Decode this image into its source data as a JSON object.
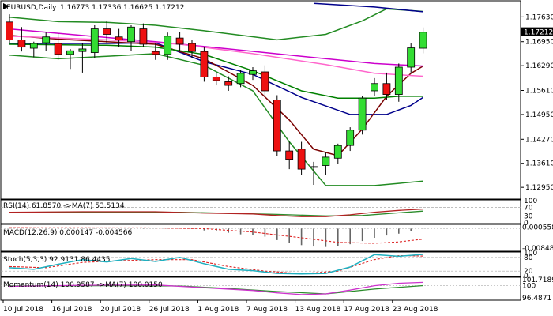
{
  "chart_data": {
    "type": "candlestick",
    "header": {
      "symbol": "EURUSD,Daily",
      "ohlc": "1.16773 1.17336 1.16625 1.17212"
    },
    "price_axis": {
      "ticks": [
        "1.17630",
        "1.16950",
        "1.16290",
        "1.15610",
        "1.14950",
        "1.14270",
        "1.13610",
        "1.12950"
      ],
      "tick_values": [
        1.1763,
        1.1695,
        1.1629,
        1.1561,
        1.1495,
        1.1427,
        1.1361,
        1.1295
      ],
      "current_price": "1.17212",
      "current_value": 1.17212,
      "range": [
        1.1265,
        1.1805
      ]
    },
    "date_axis": {
      "labels": [
        "10 Jul 2018",
        "16 Jul 2018",
        "20 Jul 2018",
        "26 Jul 2018",
        "1 Aug 2018",
        "7 Aug 2018",
        "13 Aug 2018",
        "17 Aug 2018",
        "23 Aug 2018"
      ],
      "label_candle_index": [
        0,
        4,
        8,
        12,
        16,
        20,
        24,
        28,
        32
      ]
    },
    "candles": [
      {
        "o": 1.1749,
        "h": 1.177,
        "l": 1.169,
        "c": 1.17
      },
      {
        "o": 1.17,
        "h": 1.1735,
        "l": 1.1668,
        "c": 1.168
      },
      {
        "o": 1.1677,
        "h": 1.1695,
        "l": 1.1652,
        "c": 1.169
      },
      {
        "o": 1.1692,
        "h": 1.172,
        "l": 1.167,
        "c": 1.1708
      },
      {
        "o": 1.169,
        "h": 1.1718,
        "l": 1.1645,
        "c": 1.166
      },
      {
        "o": 1.166,
        "h": 1.1675,
        "l": 1.162,
        "c": 1.167
      },
      {
        "o": 1.1668,
        "h": 1.169,
        "l": 1.161,
        "c": 1.1675
      },
      {
        "o": 1.1665,
        "h": 1.174,
        "l": 1.165,
        "c": 1.173
      },
      {
        "o": 1.173,
        "h": 1.1752,
        "l": 1.169,
        "c": 1.1715
      },
      {
        "o": 1.1708,
        "h": 1.173,
        "l": 1.168,
        "c": 1.17
      },
      {
        "o": 1.1695,
        "h": 1.174,
        "l": 1.167,
        "c": 1.1735
      },
      {
        "o": 1.173,
        "h": 1.1745,
        "l": 1.168,
        "c": 1.1688
      },
      {
        "o": 1.1668,
        "h": 1.169,
        "l": 1.1645,
        "c": 1.166
      },
      {
        "o": 1.166,
        "h": 1.172,
        "l": 1.1645,
        "c": 1.171
      },
      {
        "o": 1.1705,
        "h": 1.1722,
        "l": 1.167,
        "c": 1.1688
      },
      {
        "o": 1.169,
        "h": 1.17,
        "l": 1.165,
        "c": 1.1668
      },
      {
        "o": 1.1668,
        "h": 1.168,
        "l": 1.1585,
        "c": 1.1598
      },
      {
        "o": 1.1598,
        "h": 1.161,
        "l": 1.1575,
        "c": 1.1588
      },
      {
        "o": 1.1585,
        "h": 1.16,
        "l": 1.156,
        "c": 1.1575
      },
      {
        "o": 1.158,
        "h": 1.1618,
        "l": 1.157,
        "c": 1.1608
      },
      {
        "o": 1.1605,
        "h": 1.1625,
        "l": 1.159,
        "c": 1.1615
      },
      {
        "o": 1.1612,
        "h": 1.163,
        "l": 1.1545,
        "c": 1.156
      },
      {
        "o": 1.1535,
        "h": 1.1548,
        "l": 1.138,
        "c": 1.1395
      },
      {
        "o": 1.1395,
        "h": 1.142,
        "l": 1.1345,
        "c": 1.1372
      },
      {
        "o": 1.14,
        "h": 1.142,
        "l": 1.133,
        "c": 1.1345
      },
      {
        "o": 1.135,
        "h": 1.1365,
        "l": 1.1302,
        "c": 1.1352
      },
      {
        "o": 1.1355,
        "h": 1.139,
        "l": 1.133,
        "c": 1.1378
      },
      {
        "o": 1.1375,
        "h": 1.1415,
        "l": 1.136,
        "c": 1.141
      },
      {
        "o": 1.141,
        "h": 1.146,
        "l": 1.1395,
        "c": 1.1452
      },
      {
        "o": 1.1452,
        "h": 1.1545,
        "l": 1.144,
        "c": 1.154
      },
      {
        "o": 1.156,
        "h": 1.1595,
        "l": 1.1545,
        "c": 1.158
      },
      {
        "o": 1.158,
        "h": 1.161,
        "l": 1.1535,
        "c": 1.155
      },
      {
        "o": 1.155,
        "h": 1.1635,
        "l": 1.153,
        "c": 1.1625
      },
      {
        "o": 1.1625,
        "h": 1.169,
        "l": 1.161,
        "c": 1.1678
      },
      {
        "o": 1.1677,
        "h": 1.1734,
        "l": 1.1663,
        "c": 1.1721
      }
    ],
    "overlays": [
      {
        "color": "#00008b",
        "points": [
          [
            0,
            1.169
          ],
          [
            8,
            1.169
          ],
          [
            12,
            1.1692
          ],
          [
            16,
            1.164
          ],
          [
            20,
            1.1605
          ],
          [
            24,
            1.1542
          ],
          [
            28,
            1.1495
          ],
          [
            31,
            1.1495
          ],
          [
            33,
            1.152
          ],
          [
            34,
            1.1542
          ]
        ]
      },
      {
        "color": "#7a0000",
        "points": [
          [
            0,
            1.1712
          ],
          [
            4,
            1.1702
          ],
          [
            8,
            1.1695
          ],
          [
            12,
            1.1688
          ],
          [
            16,
            1.1648
          ],
          [
            20,
            1.1575
          ],
          [
            23,
            1.148
          ],
          [
            25,
            1.14
          ],
          [
            27,
            1.1382
          ],
          [
            29,
            1.1455
          ],
          [
            31,
            1.1545
          ],
          [
            33,
            1.1608
          ],
          [
            34,
            1.1628
          ]
        ]
      },
      {
        "color": "#008000",
        "points": [
          [
            0,
            1.1688
          ],
          [
            8,
            1.1685
          ],
          [
            12,
            1.168
          ],
          [
            16,
            1.166
          ],
          [
            20,
            1.1615
          ],
          [
            24,
            1.156
          ],
          [
            27,
            1.154
          ],
          [
            30,
            1.154
          ],
          [
            32,
            1.1545
          ],
          [
            34,
            1.1545
          ]
        ]
      },
      {
        "color": "#cc00cc",
        "points": [
          [
            0,
            1.173
          ],
          [
            6,
            1.1712
          ],
          [
            12,
            1.1695
          ],
          [
            18,
            1.1675
          ],
          [
            24,
            1.1655
          ],
          [
            30,
            1.1635
          ],
          [
            34,
            1.1628
          ]
        ]
      },
      {
        "color": "#ff66cc",
        "points": [
          [
            0,
            1.171
          ],
          [
            8,
            1.17
          ],
          [
            14,
            1.1688
          ],
          [
            20,
            1.1662
          ],
          [
            26,
            1.1632
          ],
          [
            30,
            1.1608
          ],
          [
            34,
            1.16
          ]
        ]
      },
      {
        "color": "#228b22",
        "points": [
          [
            0,
            1.1658
          ],
          [
            4,
            1.1648
          ],
          [
            8,
            1.1655
          ],
          [
            12,
            1.1662
          ],
          [
            16,
            1.163
          ],
          [
            20,
            1.156
          ],
          [
            23,
            1.142
          ],
          [
            26,
            1.13
          ],
          [
            30,
            1.13
          ],
          [
            34,
            1.1312
          ]
        ]
      },
      {
        "color": "#228b22",
        "points": [
          [
            0,
            1.1762
          ],
          [
            4,
            1.175
          ],
          [
            8,
            1.1748
          ],
          [
            12,
            1.174
          ],
          [
            16,
            1.1725
          ],
          [
            22,
            1.17
          ],
          [
            26,
            1.1715
          ],
          [
            29,
            1.1752
          ],
          [
            31,
            1.1785
          ],
          [
            34,
            1.1778
          ]
        ]
      },
      {
        "color": "#00008b",
        "points": [
          [
            25,
            1.18
          ],
          [
            30,
            1.179
          ],
          [
            34,
            1.1777
          ]
        ]
      }
    ],
    "rsi": {
      "label": "RSI(14) 61.8570 ->MA(7) 53.5134",
      "ticks": [
        "100",
        "70",
        "30",
        "0"
      ],
      "tick_values": [
        100,
        70,
        30,
        0
      ],
      "range": [
        0,
        100
      ],
      "rsi_line": [
        [
          0,
          48
        ],
        [
          6,
          50
        ],
        [
          12,
          50
        ],
        [
          16,
          44
        ],
        [
          20,
          40
        ],
        [
          22,
          33
        ],
        [
          24,
          28
        ],
        [
          26,
          28
        ],
        [
          28,
          36
        ],
        [
          30,
          48
        ],
        [
          32,
          56
        ],
        [
          34,
          62
        ]
      ],
      "ma_line": [
        [
          0,
          47
        ],
        [
          8,
          49
        ],
        [
          14,
          48
        ],
        [
          18,
          43
        ],
        [
          22,
          38
        ],
        [
          26,
          31
        ],
        [
          29,
          33
        ],
        [
          32,
          45
        ],
        [
          34,
          53
        ]
      ]
    },
    "macd": {
      "label": "MACD(12,26,9) 0.000147 -0.004566",
      "ticks": [
        "0.000558",
        "-0.008489"
      ],
      "tick_values": [
        0.000558,
        -0.008489
      ],
      "range": [
        -0.0095,
        0.0015
      ],
      "histogram": [
        0.0005,
        0.0004,
        0.0003,
        0.0003,
        0.0002,
        0.0003,
        0.0002,
        0.0004,
        0.0005,
        0.0004,
        0.0003,
        0.0002,
        0.0001,
        0.0001,
        0.0001,
        -0.0001,
        -0.0008,
        -0.0012,
        -0.0018,
        -0.0025,
        -0.0028,
        -0.0035,
        -0.005,
        -0.0062,
        -0.0072,
        -0.0078,
        -0.008,
        -0.0076,
        -0.0068,
        -0.0054,
        -0.004,
        -0.003,
        -0.0022,
        -0.001,
        0.0001
      ],
      "signal": [
        [
          0,
          0.0004
        ],
        [
          12,
          0.0003
        ],
        [
          16,
          0.0
        ],
        [
          20,
          -0.0015
        ],
        [
          24,
          -0.004
        ],
        [
          27,
          -0.006
        ],
        [
          30,
          -0.0064
        ],
        [
          32,
          -0.0058
        ],
        [
          34,
          -0.0046
        ]
      ]
    },
    "stoch": {
      "label": "Stoch(5,3,3) 92.9131 86.4435",
      "ticks": [
        "100",
        "80",
        "20",
        "0"
      ],
      "tick_values": [
        100,
        80,
        20,
        0
      ],
      "range": [
        0,
        100
      ],
      "k_line": [
        [
          0,
          35
        ],
        [
          2,
          28
        ],
        [
          4,
          50
        ],
        [
          6,
          70
        ],
        [
          8,
          60
        ],
        [
          10,
          75
        ],
        [
          12,
          62
        ],
        [
          14,
          80
        ],
        [
          16,
          52
        ],
        [
          18,
          28
        ],
        [
          20,
          22
        ],
        [
          22,
          10
        ],
        [
          24,
          8
        ],
        [
          26,
          10
        ],
        [
          28,
          38
        ],
        [
          30,
          92
        ],
        [
          32,
          85
        ],
        [
          34,
          93
        ]
      ],
      "d_line": [
        [
          0,
          40
        ],
        [
          3,
          35
        ],
        [
          6,
          58
        ],
        [
          9,
          65
        ],
        [
          12,
          70
        ],
        [
          15,
          70
        ],
        [
          18,
          40
        ],
        [
          21,
          20
        ],
        [
          24,
          9
        ],
        [
          27,
          20
        ],
        [
          30,
          70
        ],
        [
          32,
          88
        ],
        [
          34,
          86
        ]
      ]
    },
    "momentum": {
      "label": "Momentum(14) 100.9587 ->MA(7) 100.0150",
      "ticks": [
        "101.7189",
        "100",
        "96.4871"
      ],
      "tick_values": [
        101.7189,
        100,
        96.4871
      ],
      "range": [
        96.0,
        102.2
      ],
      "mom_line": [
        [
          0,
          99.8
        ],
        [
          6,
          100.1
        ],
        [
          12,
          100.2
        ],
        [
          16,
          99.4
        ],
        [
          20,
          98.6
        ],
        [
          22,
          97.9
        ],
        [
          24,
          97.4
        ],
        [
          26,
          97.6
        ],
        [
          28,
          98.7
        ],
        [
          30,
          100.0
        ],
        [
          32,
          100.7
        ],
        [
          34,
          100.96
        ]
      ],
      "ma_line": [
        [
          0,
          99.9
        ],
        [
          8,
          100.0
        ],
        [
          14,
          99.9
        ],
        [
          18,
          99.2
        ],
        [
          22,
          98.3
        ],
        [
          26,
          97.6
        ],
        [
          30,
          99.0
        ],
        [
          34,
          100.02
        ]
      ]
    }
  }
}
